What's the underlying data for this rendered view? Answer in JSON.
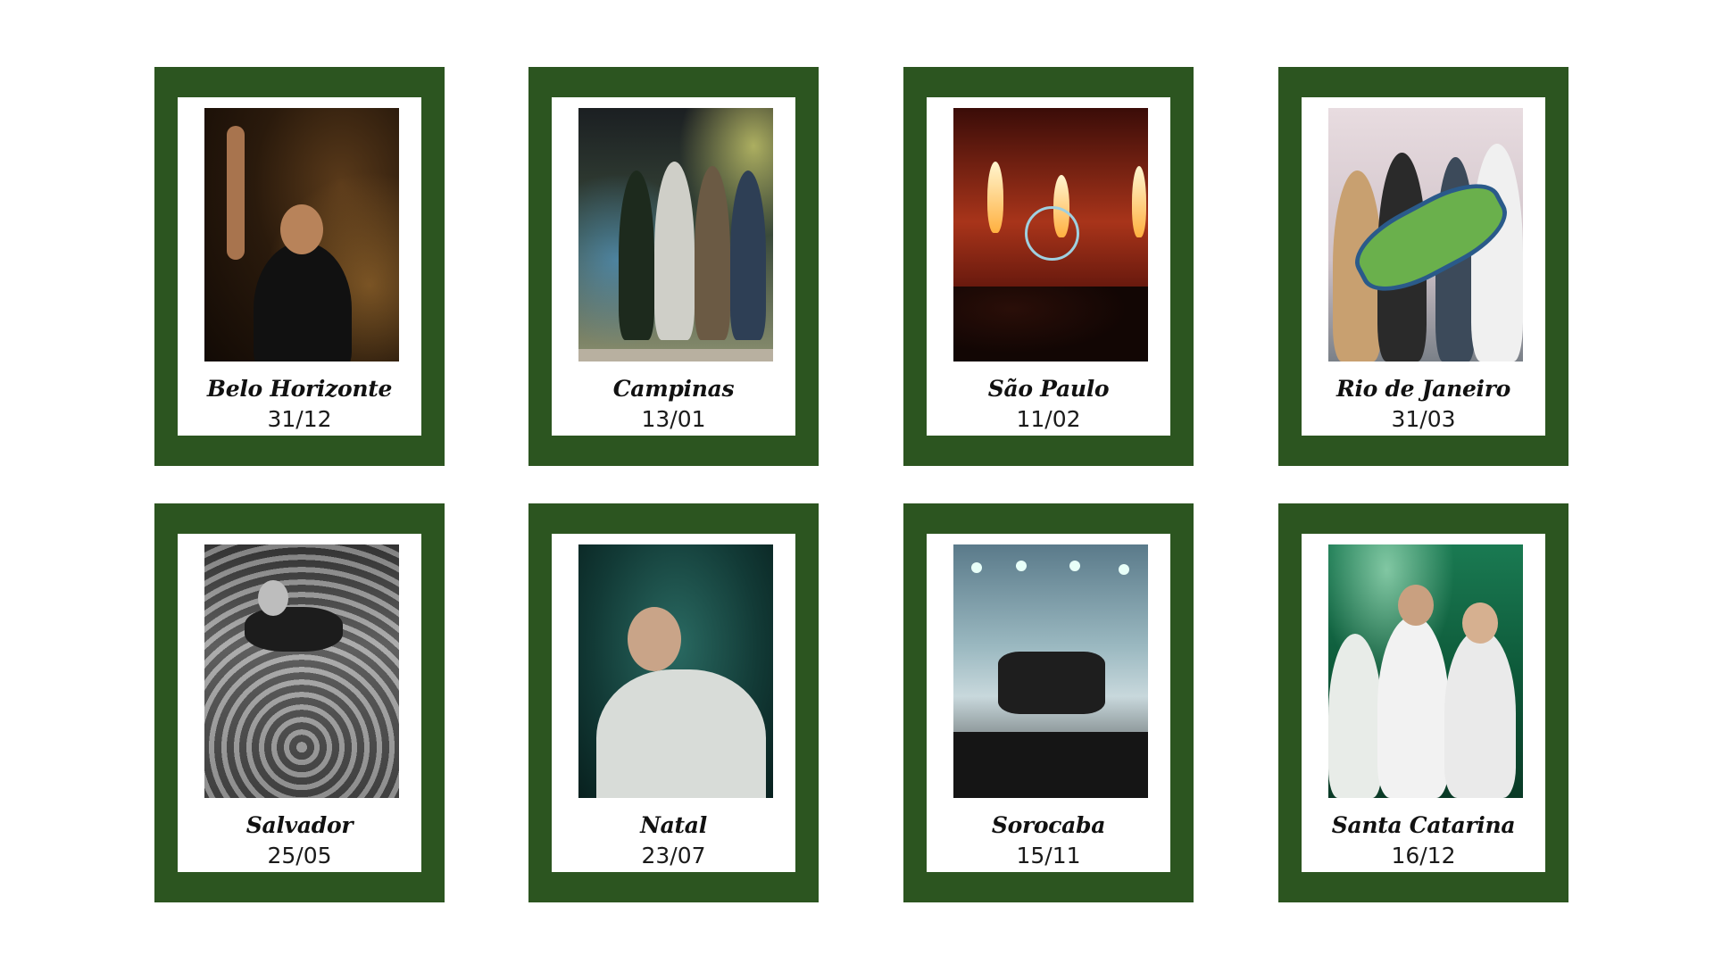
{
  "colors": {
    "frame": "#2c5520",
    "background": "#ffffff"
  },
  "cards": [
    {
      "city": "Belo Horizonte",
      "date": "31/12"
    },
    {
      "city": "Campinas",
      "date": "13/01"
    },
    {
      "city": "São Paulo",
      "date": "11/02"
    },
    {
      "city": "Rio de Janeiro",
      "date": "31/03"
    },
    {
      "city": "Salvador",
      "date": "25/05"
    },
    {
      "city": "Natal",
      "date": "23/07"
    },
    {
      "city": "Sorocaba",
      "date": "15/11"
    },
    {
      "city": "Santa Catarina",
      "date": "16/12"
    }
  ]
}
